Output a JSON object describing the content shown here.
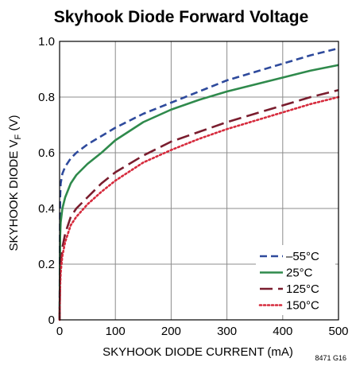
{
  "chart_data": {
    "type": "line",
    "title": "Skyhook Diode Forward Voltage",
    "xlabel": "SKYHOOK DIODE CURRENT (mA)",
    "ylabel_main": "SKYHOOK DIODE V",
    "ylabel_sub": "F",
    "ylabel_unit": " (V)",
    "xlim": [
      0,
      500
    ],
    "ylim": [
      0,
      1.0
    ],
    "x_ticks": [
      0,
      100,
      200,
      300,
      400,
      500
    ],
    "y_ticks": [
      0,
      0.2,
      0.4,
      0.6,
      0.8,
      1.0
    ],
    "y_tick_labels": [
      "0",
      "0.2",
      "0.4",
      "0.6",
      "0.8",
      "1.0"
    ],
    "grid": true,
    "legend_position": "bottom-right",
    "figure_code": "8471 G16",
    "series": [
      {
        "name": "–55°C",
        "color": "#2e4a9c",
        "style": "dashed",
        "x": [
          0,
          1,
          2,
          5,
          10,
          20,
          30,
          50,
          75,
          100,
          150,
          200,
          250,
          300,
          350,
          400,
          450,
          500
        ],
        "y": [
          0.0,
          0.44,
          0.49,
          0.525,
          0.55,
          0.58,
          0.6,
          0.63,
          0.66,
          0.69,
          0.74,
          0.78,
          0.82,
          0.86,
          0.89,
          0.92,
          0.95,
          0.975
        ]
      },
      {
        "name": "25°C",
        "color": "#2f8a4c",
        "style": "solid",
        "x": [
          0,
          1,
          2,
          5,
          10,
          20,
          30,
          50,
          75,
          100,
          150,
          200,
          250,
          300,
          350,
          400,
          450,
          500
        ],
        "y": [
          0.0,
          0.3,
          0.35,
          0.4,
          0.44,
          0.49,
          0.52,
          0.56,
          0.6,
          0.645,
          0.71,
          0.755,
          0.79,
          0.82,
          0.845,
          0.87,
          0.895,
          0.915
        ]
      },
      {
        "name": "125°C",
        "color": "#7a1d2e",
        "style": "longdash",
        "x": [
          0,
          1,
          2,
          5,
          10,
          20,
          30,
          50,
          75,
          100,
          150,
          200,
          250,
          300,
          350,
          400,
          450,
          500
        ],
        "y": [
          0.0,
          0.16,
          0.2,
          0.26,
          0.31,
          0.37,
          0.4,
          0.44,
          0.49,
          0.53,
          0.59,
          0.64,
          0.675,
          0.71,
          0.74,
          0.77,
          0.8,
          0.825
        ]
      },
      {
        "name": "150°C",
        "color": "#d62a3c",
        "style": "dotted",
        "x": [
          0,
          1,
          2,
          5,
          10,
          20,
          30,
          50,
          75,
          100,
          150,
          200,
          250,
          300,
          350,
          400,
          450,
          500
        ],
        "y": [
          0.0,
          0.12,
          0.17,
          0.23,
          0.28,
          0.34,
          0.37,
          0.415,
          0.46,
          0.5,
          0.565,
          0.61,
          0.65,
          0.685,
          0.715,
          0.745,
          0.775,
          0.8
        ]
      }
    ]
  }
}
